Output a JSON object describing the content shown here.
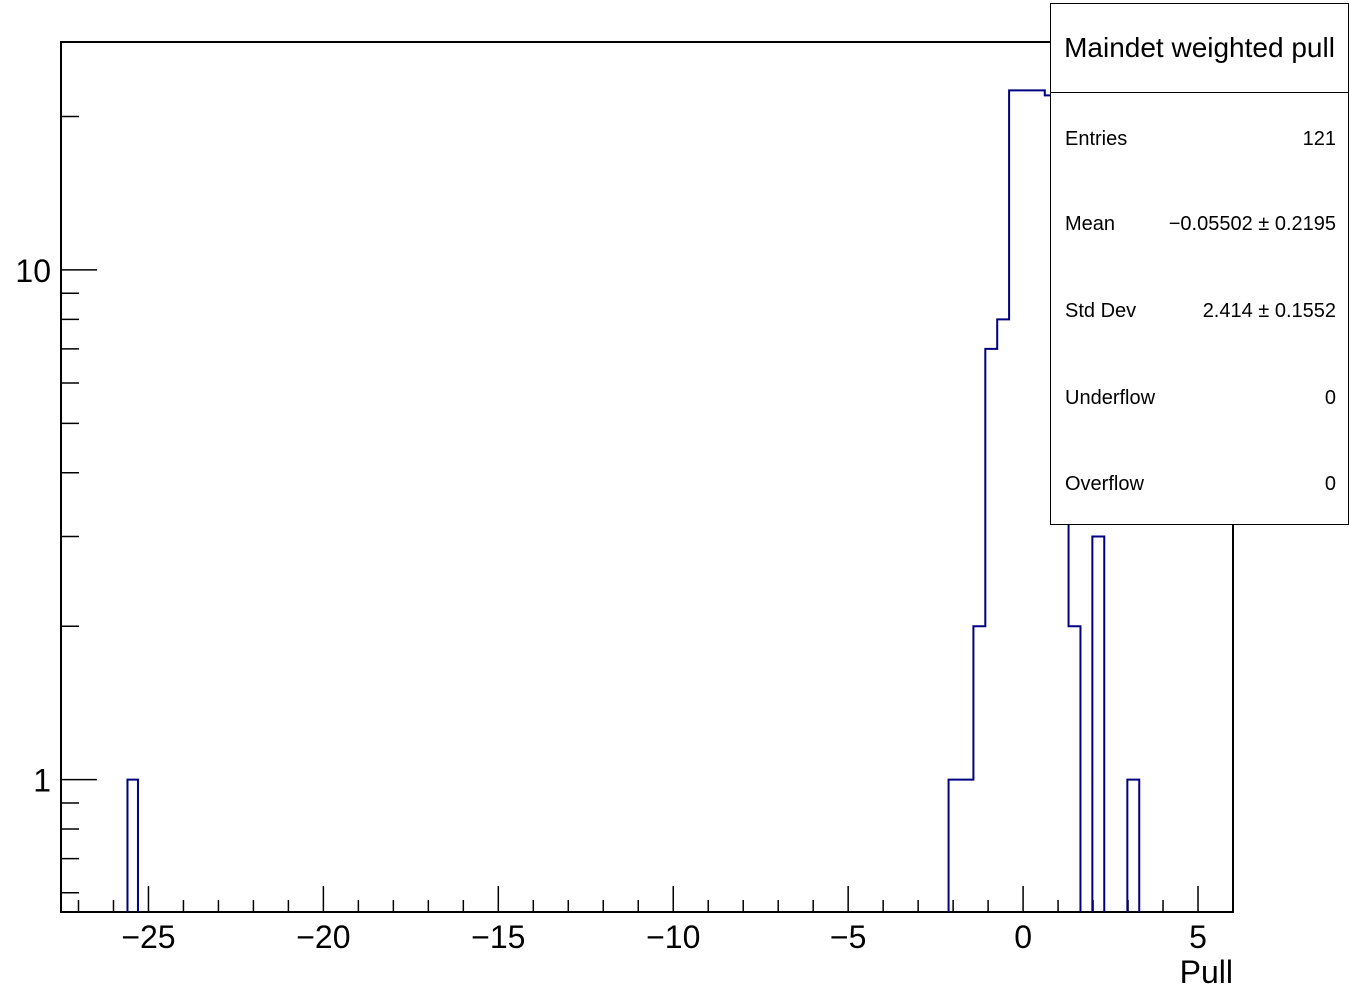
{
  "chart_data": {
    "type": "histogram",
    "xlabel": "Pull",
    "ylabel": "",
    "xlim": [
      -27.5,
      6.0
    ],
    "ylim": [
      0.55,
      28
    ],
    "log_y": true,
    "x_tick_labels": [
      "−25",
      "−20",
      "−15",
      "−10",
      "−5",
      "0",
      "5"
    ],
    "x_tick_values": [
      -25,
      -20,
      -15,
      -10,
      -5,
      0,
      5
    ],
    "y_tick_labels": [
      "1",
      "10"
    ],
    "y_tick_values": [
      1,
      10
    ],
    "line_color": "#000080",
    "bins": [
      {
        "x0": -25.6,
        "x1": -25.3,
        "value": 1
      },
      {
        "x0": -2.13,
        "x1": -1.42,
        "value": 1
      },
      {
        "x0": -1.42,
        "x1": -1.08,
        "value": 2
      },
      {
        "x0": -1.08,
        "x1": -0.74,
        "value": 7
      },
      {
        "x0": -0.74,
        "x1": -0.4,
        "value": 8
      },
      {
        "x0": -0.4,
        "x1": 0.62,
        "value": 22.5
      },
      {
        "x0": 0.62,
        "x1": 0.96,
        "value": 22
      },
      {
        "x0": 0.96,
        "x1": 1.3,
        "value": 4
      },
      {
        "x0": 1.3,
        "x1": 1.64,
        "value": 2
      },
      {
        "x0": 1.98,
        "x1": 2.32,
        "value": 3
      },
      {
        "x0": 2.98,
        "x1": 3.32,
        "value": 1
      }
    ]
  },
  "stats": {
    "title": "Maindet weighted pull",
    "rows": [
      {
        "label": "Entries",
        "value": "121"
      },
      {
        "label": "Mean",
        "value": "−0.05502 ± 0.2195"
      },
      {
        "label": "Std Dev",
        "value": "2.414 ± 0.1552"
      },
      {
        "label": "Underflow",
        "value": "0"
      },
      {
        "label": "Overflow",
        "value": "0"
      }
    ]
  }
}
